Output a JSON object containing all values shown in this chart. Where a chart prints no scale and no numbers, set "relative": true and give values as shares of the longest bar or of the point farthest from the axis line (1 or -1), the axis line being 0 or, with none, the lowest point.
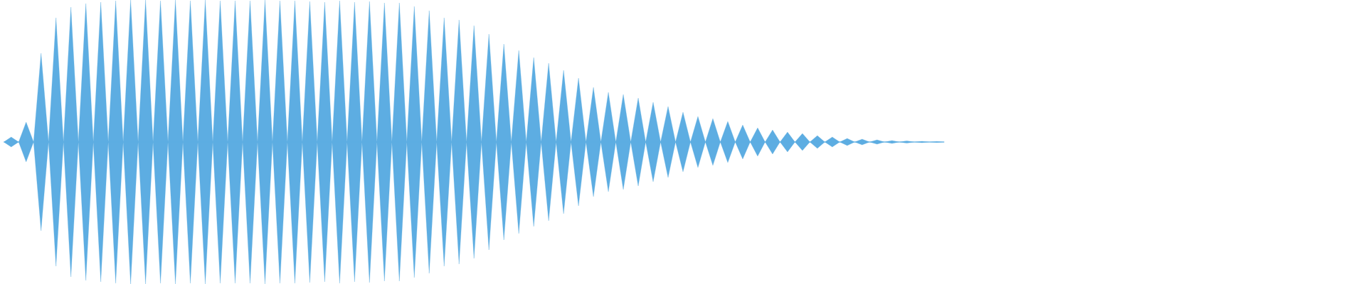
{
  "chart_data": {
    "type": "area",
    "relative": true,
    "categories": [
      null,
      null,
      null,
      null,
      null,
      null,
      null,
      null,
      null,
      null,
      null,
      null,
      null,
      null,
      null,
      null,
      null,
      null,
      null,
      null,
      null,
      null,
      null,
      null,
      null,
      null,
      null,
      null,
      null,
      null,
      null,
      null,
      null,
      null,
      null,
      null,
      null,
      null,
      null,
      null,
      null,
      null,
      null,
      null,
      null,
      null,
      null,
      null,
      null,
      null,
      null,
      null,
      null,
      null,
      null,
      null,
      null,
      null,
      null,
      null,
      null,
      null,
      null,
      null,
      null,
      null,
      null,
      null,
      null,
      null,
      null,
      null,
      null,
      null,
      null,
      null,
      null,
      null,
      null,
      null,
      null,
      null,
      null,
      null,
      null,
      null,
      null,
      null,
      null,
      null,
      null,
      null,
      null,
      null,
      null,
      null,
      null,
      null,
      null,
      null,
      null,
      null,
      null,
      null,
      null,
      null,
      null,
      null,
      null,
      null,
      null,
      null,
      null,
      null,
      null,
      null,
      null,
      null,
      null,
      null,
      null,
      null,
      null,
      null,
      null,
      null,
      null,
      null,
      null,
      null,
      null,
      null,
      null,
      null,
      null,
      null,
      null,
      null,
      null,
      null,
      null,
      null,
      null,
      null,
      null,
      null,
      null,
      null,
      null,
      null,
      null,
      null,
      null,
      null,
      null,
      null,
      null,
      null,
      null,
      null,
      null,
      null,
      null,
      null,
      null,
      null,
      null,
      null,
      null,
      null,
      null,
      null,
      null,
      null,
      null,
      null,
      null,
      null,
      null,
      null,
      null,
      null,
      null
    ],
    "series": [
      {
        "color": "#5dade2",
        "values": [
          0,
          0.035,
          0,
          0.14,
          0,
          0.625,
          0,
          0.875,
          0,
          0.95,
          0,
          0.975,
          0,
          0.985,
          0,
          0.995,
          0,
          1,
          0,
          1,
          0,
          0.995,
          0,
          1,
          0,
          0.995,
          0,
          1,
          0,
          0.995,
          0,
          0.995,
          0,
          0.995,
          0,
          1,
          0,
          0.995,
          0,
          0.995,
          0,
          0.99,
          0,
          0.985,
          0,
          0.995,
          0,
          0.985,
          0,
          0.99,
          0,
          0.98,
          0,
          0.98,
          0,
          0.955,
          0,
          0.925,
          0,
          0.875,
          0,
          0.86,
          0,
          0.82,
          0,
          0.76,
          0,
          0.69,
          0,
          0.645,
          0,
          0.595,
          0,
          0.555,
          0,
          0.505,
          0,
          0.45,
          0,
          0.385,
          0,
          0.35,
          0,
          0.335,
          0,
          0.31,
          0,
          0.28,
          0,
          0.25,
          0,
          0.21,
          0,
          0.18,
          0,
          0.165,
          0,
          0.145,
          0,
          0.12,
          0,
          0.1,
          0,
          0.085,
          0,
          0.07,
          0,
          0.06,
          0,
          0.045,
          0,
          0.035,
          0,
          0.025,
          0,
          0.02,
          0,
          0.015,
          0,
          0.01,
          0,
          0.008,
          0,
          0.005,
          0,
          0.004,
          0,
          null,
          null,
          null,
          null,
          null,
          null,
          null,
          null,
          null,
          null,
          null,
          null,
          null,
          null,
          null,
          null,
          null,
          null,
          null,
          null,
          null,
          null,
          null,
          null,
          null,
          null,
          null,
          null,
          null,
          null,
          null,
          null,
          null,
          null,
          null,
          null,
          null,
          null,
          null,
          null,
          null,
          null,
          null,
          null,
          null,
          null,
          null,
          null,
          null,
          null,
          null,
          null,
          null,
          null,
          null,
          null
        ]
      },
      {
        "color": "#5dade2",
        "values": [
          0,
          -0.035,
          0,
          -0.14,
          0,
          -0.625,
          0,
          -0.875,
          0,
          -0.95,
          0,
          -0.975,
          0,
          -0.985,
          0,
          -0.995,
          0,
          -1,
          0,
          -1,
          0,
          -0.995,
          0,
          -1,
          0,
          -0.995,
          0,
          -1,
          0,
          -0.995,
          0,
          -0.995,
          0,
          -0.995,
          0,
          -1,
          0,
          -0.995,
          0,
          -0.995,
          0,
          -0.99,
          0,
          -0.985,
          0,
          -0.995,
          0,
          -0.985,
          0,
          -0.99,
          0,
          -0.98,
          0,
          -0.98,
          0,
          -0.955,
          0,
          -0.925,
          0,
          -0.875,
          0,
          -0.86,
          0,
          -0.82,
          0,
          -0.76,
          0,
          -0.69,
          0,
          -0.645,
          0,
          -0.595,
          0,
          -0.555,
          0,
          -0.505,
          0,
          -0.45,
          0,
          -0.385,
          0,
          -0.35,
          0,
          -0.335,
          0,
          -0.31,
          0,
          -0.28,
          0,
          -0.25,
          0,
          -0.21,
          0,
          -0.18,
          0,
          -0.165,
          0,
          -0.145,
          0,
          -0.12,
          0,
          -0.1,
          0,
          -0.085,
          0,
          -0.07,
          0,
          -0.06,
          0,
          -0.045,
          0,
          -0.035,
          0,
          -0.025,
          0,
          -0.02,
          0,
          -0.015,
          0,
          -0.01,
          0,
          -0.008,
          0,
          -0.005,
          0,
          -0.004,
          0,
          null,
          null,
          null,
          null,
          null,
          null,
          null,
          null,
          null,
          null,
          null,
          null,
          null,
          null,
          null,
          null,
          null,
          null,
          null,
          null,
          null,
          null,
          null,
          null,
          null,
          null,
          null,
          null,
          null,
          null,
          null,
          null,
          null,
          null,
          null,
          null,
          null,
          null,
          null,
          null,
          null,
          null,
          null,
          null,
          null,
          null,
          null,
          null,
          null,
          null,
          null,
          null,
          null,
          null,
          null,
          null
        ]
      }
    ]
  }
}
